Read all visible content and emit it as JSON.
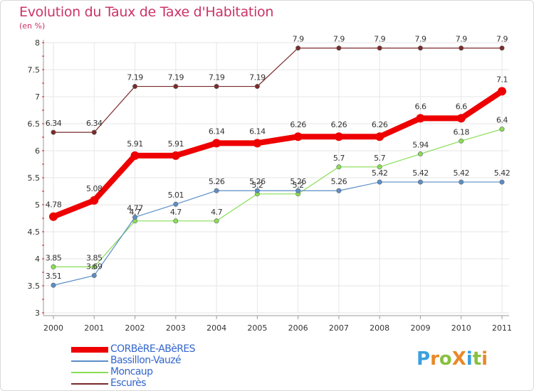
{
  "chart_data": {
    "type": "line",
    "title": "Evolution du Taux de Taxe d'Habitation",
    "subtitle": "(en %)",
    "x": [
      "2000",
      "2001",
      "2002",
      "2003",
      "2004",
      "2005",
      "2006",
      "2007",
      "2008",
      "2009",
      "2010",
      "2011"
    ],
    "ylim": [
      3,
      8
    ],
    "yticks": [
      "3",
      "3.5",
      "4",
      "4.5",
      "5",
      "5.5",
      "6",
      "6.5",
      "7",
      "7.5",
      "8"
    ],
    "grid": true,
    "legend_position": "bottom-left",
    "series": [
      {
        "name": "CORBèRE-ABèRES",
        "color": "#ee0000",
        "values": [
          4.78,
          5.08,
          5.91,
          5.91,
          6.14,
          6.14,
          6.26,
          6.26,
          6.26,
          6.6,
          6.6,
          7.1
        ],
        "labels": [
          "4.78",
          "5.08",
          "5.91",
          "5.91",
          "6.14",
          "6.14",
          "6.26",
          "6.26",
          "6.26",
          "6.6",
          "6.6",
          "7.1"
        ]
      },
      {
        "name": "Bassillon-Vauzé",
        "color": "#5b8ec7",
        "values": [
          3.51,
          3.69,
          4.77,
          5.01,
          5.26,
          5.26,
          5.26,
          5.26,
          5.42,
          5.42,
          5.42,
          5.42
        ],
        "labels": [
          "3.51",
          "3.69",
          "4.77",
          "5.01",
          "5.26",
          "5.26",
          "5.26",
          "5.26",
          "5.42",
          "5.42",
          "5.42",
          "5.42"
        ]
      },
      {
        "name": "Moncaup",
        "color": "#88dd55",
        "values": [
          3.85,
          3.85,
          4.7,
          4.7,
          4.7,
          5.2,
          5.2,
          5.7,
          5.7,
          5.94,
          6.18,
          6.4
        ],
        "labels": [
          "3.85",
          "3.85",
          "4.7",
          "4.7",
          "4.7",
          "5.2",
          "5.2",
          "5.7",
          "5.7",
          "5.94",
          "6.18",
          "6.4"
        ]
      },
      {
        "name": "Escurès",
        "color": "#7a2a2a",
        "values": [
          6.34,
          6.34,
          7.19,
          7.19,
          7.19,
          7.19,
          7.9,
          7.9,
          7.9,
          7.9,
          7.9,
          7.9
        ],
        "labels": [
          "6.34",
          "6.34",
          "7.19",
          "7.19",
          "7.19",
          "7.19",
          "7.9",
          "7.9",
          "7.9",
          "7.9",
          "7.9",
          "7.9"
        ]
      }
    ]
  },
  "logo": {
    "text": "ProXiti",
    "letter_colors": [
      "#3aa0dd",
      "#e8892a",
      "#88c040",
      "#e8892a",
      "#3aa0dd",
      "#88c040",
      "#e8892a"
    ]
  }
}
